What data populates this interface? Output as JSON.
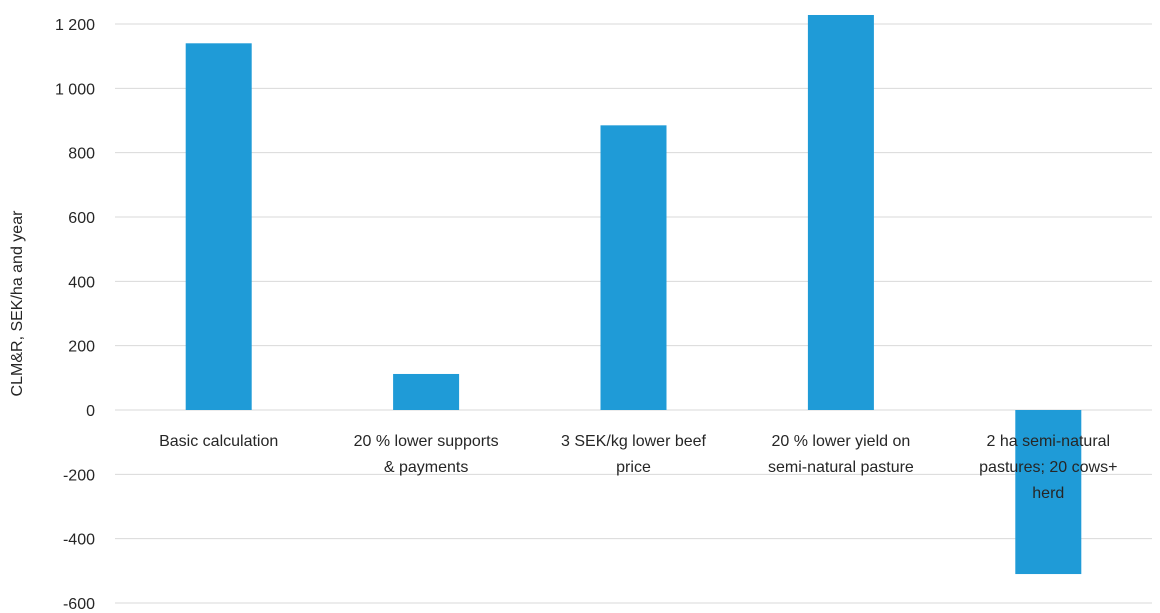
{
  "chart_data": {
    "type": "bar",
    "title": "",
    "xlabel": "",
    "ylabel": "CLM&R, SEK/ha and year",
    "categories": [
      [
        "Basic calculation"
      ],
      [
        "20 % lower supports",
        "& payments"
      ],
      [
        "3 SEK/kg lower beef",
        "price"
      ],
      [
        "20 % lower yield on",
        "semi-natural pasture"
      ],
      [
        "2 ha semi-natural",
        "pastures; 20 cows+",
        "herd"
      ]
    ],
    "values": [
      1140,
      112,
      885,
      1228,
      -510
    ],
    "ylim": [
      -600,
      1200
    ],
    "yticks": [
      -600,
      -400,
      -200,
      0,
      200,
      400,
      600,
      800,
      1000,
      1200
    ],
    "ytick_labels": [
      "-600",
      "-400",
      "-200",
      "0",
      "200",
      "400",
      "600",
      "800",
      "1 000",
      "1 200"
    ],
    "grid": true,
    "legend": "none",
    "bar_color": "#1f9bd7",
    "grid_color": "#d9d9d9"
  }
}
